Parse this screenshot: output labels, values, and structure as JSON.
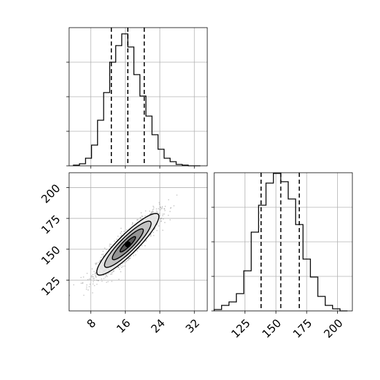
{
  "colors": {
    "hist_line": "#000000",
    "grid": "#b0b0b0",
    "scatter": "#8a8a8a",
    "contour_line": "#000000",
    "density_ramp": [
      "#e6e6e6",
      "#bdbdbd",
      "#8c8c8c",
      "#4d4d4d",
      "#000000"
    ]
  },
  "chart_data": [
    {
      "type": "histogram",
      "panel": "marginal-x",
      "bin_edges": [
        4.0,
        5.4,
        6.8,
        8.2,
        9.6,
        11.0,
        12.4,
        13.8,
        15.2,
        16.6,
        18.0,
        19.4,
        20.8,
        22.2,
        23.6,
        25.0,
        26.4,
        27.8,
        29.2,
        30.6,
        32.0,
        33.4
      ],
      "counts": [
        0.2,
        0.6,
        2.2,
        6.0,
        13.2,
        21.2,
        30.0,
        34.8,
        38.2,
        34.4,
        26.4,
        20.2,
        14.4,
        9.0,
        4.8,
        2.2,
        1.2,
        0.4,
        0.2,
        0,
        0
      ],
      "ylim": [
        0,
        40
      ],
      "xlim": [
        3,
        35
      ],
      "xticks": [
        8,
        16,
        24,
        32
      ],
      "yticks": [
        0,
        10,
        20,
        30
      ],
      "quantiles": [
        12.8,
        16.6,
        20.4
      ],
      "grid": true
    },
    {
      "type": "histogram",
      "panel": "marginal-y",
      "bin_edges": [
        100,
        106,
        112,
        118,
        124,
        130,
        136,
        142,
        148,
        154,
        160,
        166,
        172,
        178,
        184,
        190,
        196,
        202,
        208
      ],
      "counts": [
        0.4,
        1.6,
        2.6,
        5.0,
        11.6,
        22.8,
        30.6,
        37.0,
        39.8,
        37.4,
        32.4,
        25.0,
        15.0,
        9.8,
        4.2,
        1.6,
        0.6,
        0
      ],
      "ylim": [
        0,
        40
      ],
      "xlim": [
        100,
        212
      ],
      "xticks": [
        125,
        150,
        175,
        200
      ],
      "yticks": [
        0,
        10,
        20,
        30
      ],
      "quantiles": [
        138,
        154,
        169
      ],
      "grid": true
    },
    {
      "type": "scatter",
      "panel": "joint",
      "xlim": [
        3,
        35
      ],
      "ylim": [
        100,
        212
      ],
      "xticks": [
        8,
        16,
        24,
        32
      ],
      "yticks": [
        125,
        150,
        175,
        200
      ],
      "mean": [
        16.6,
        154
      ],
      "std": [
        3.6,
        12.5
      ],
      "correlation": 0.9,
      "points_drawn": 1500,
      "contour_sigma_levels": [
        0.5,
        1.0,
        1.5,
        2.0
      ],
      "grid": true
    }
  ]
}
